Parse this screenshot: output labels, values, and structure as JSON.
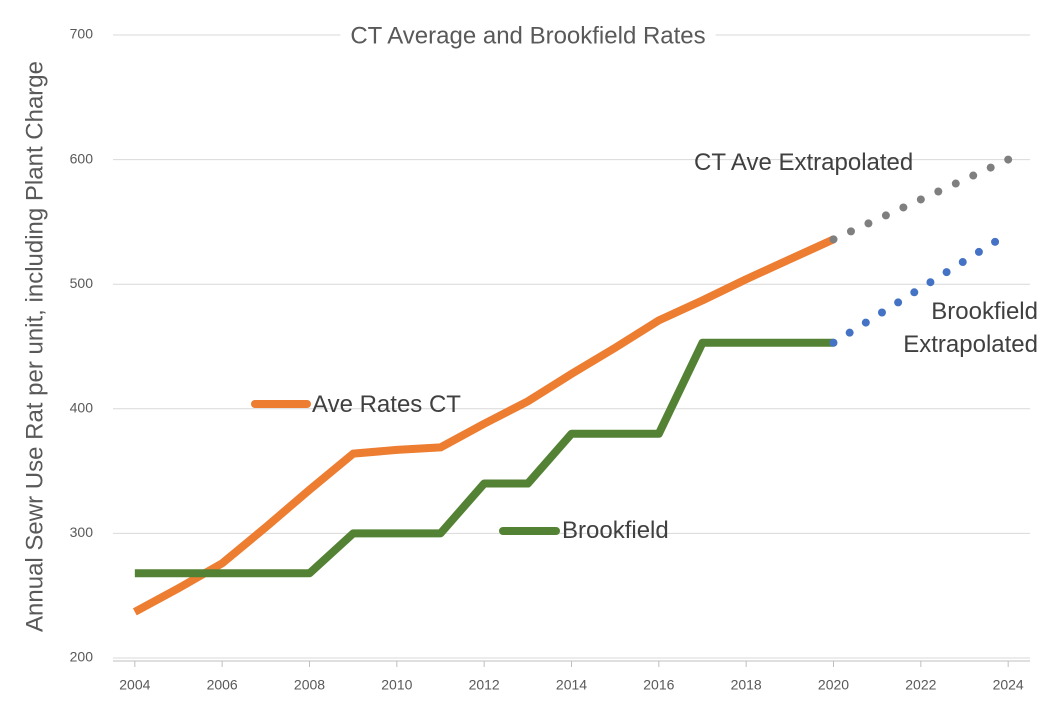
{
  "chart_data": {
    "type": "line",
    "title": "CT Average and Brookfield Rates",
    "y_label": "Annual Sewr Use Rat per unit, including Plant Charge",
    "xlim": [
      2003.5,
      2024.5
    ],
    "xticks": [
      2004,
      2006,
      2008,
      2010,
      2012,
      2014,
      2016,
      2018,
      2020,
      2022,
      2024
    ],
    "ylim": [
      200,
      700
    ],
    "yticks": [
      200,
      300,
      400,
      500,
      600,
      700
    ],
    "grid": true,
    "series": [
      {
        "name": "Ave Rates CT",
        "color": "#ED7D31",
        "style": "solid",
        "x": [
          2004,
          2005,
          2006,
          2007,
          2008,
          2009,
          2010,
          2011,
          2012,
          2013,
          2014,
          2015,
          2016,
          2017,
          2018,
          2019,
          2020
        ],
        "values": [
          237,
          256,
          276,
          305,
          335,
          364,
          367,
          369,
          388,
          406,
          428,
          449,
          471,
          487,
          504,
          520,
          536
        ]
      },
      {
        "name": "Brookfield",
        "color": "#548235",
        "style": "solid",
        "x": [
          2004,
          2005,
          2006,
          2007,
          2008,
          2009,
          2010,
          2011,
          2012,
          2013,
          2014,
          2015,
          2016,
          2017,
          2018,
          2019,
          2020
        ],
        "values": [
          268,
          268,
          268,
          268,
          268,
          300,
          300,
          300,
          340,
          340,
          380,
          380,
          380,
          453,
          453,
          453,
          453
        ]
      },
      {
        "name": "CT Ave Extrapolated",
        "color": "#7F7F7F",
        "style": "dotted",
        "x": [
          2020,
          2020.4,
          2020.8,
          2021.2,
          2021.6,
          2022,
          2022.4,
          2022.8,
          2023.2,
          2023.6,
          2024
        ],
        "values": [
          536,
          542.4,
          548.8,
          555.2,
          561.6,
          568,
          574.4,
          580.8,
          587.2,
          593.6,
          600
        ]
      },
      {
        "name": "Brookfield Extrapolated",
        "color": "#4472C4",
        "style": "dotted",
        "x": [
          2020,
          2020.37,
          2020.74,
          2021.11,
          2021.48,
          2021.85,
          2022.22,
          2022.59,
          2022.96,
          2023.33,
          2023.7
        ],
        "values": [
          453,
          461.1,
          469.2,
          477.3,
          485.4,
          493.5,
          501.6,
          509.7,
          517.8,
          525.9,
          534
        ]
      }
    ]
  }
}
